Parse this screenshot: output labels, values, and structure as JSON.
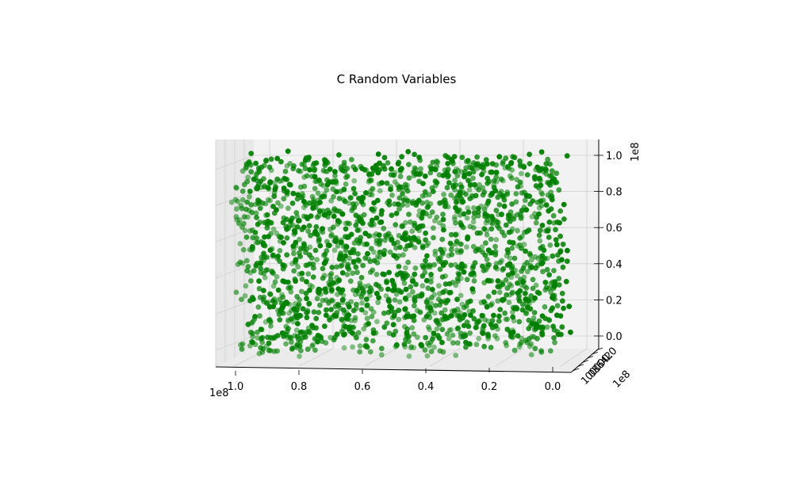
{
  "chart_data": {
    "type": "scatter",
    "projection": "3d",
    "title": "C Random Variables",
    "xlabel": "",
    "ylabel": "",
    "zlabel": "",
    "x_axis": {
      "ticks": [
        0.0,
        0.2,
        0.4,
        0.6,
        0.8,
        1.0
      ],
      "tick_labels": [
        "0.0",
        "0.2",
        "0.4",
        "0.6",
        "0.8",
        "1.0"
      ],
      "offset_label": "1e8",
      "direction": "decreasing left-to-right",
      "range": [
        0,
        100000000
      ]
    },
    "y_axis": {
      "tick_labels": [
        "1.0",
        "0.8",
        "0.6",
        "0.4",
        "0.2",
        "0.0"
      ],
      "offset_label": "1e8",
      "range": [
        0,
        100000000
      ],
      "note": "depth axis seen nearly edge-on; labels overlap"
    },
    "z_axis": {
      "ticks": [
        0.0,
        0.2,
        0.4,
        0.6,
        0.8,
        1.0
      ],
      "tick_labels": [
        "0.0",
        "0.2",
        "0.4",
        "0.6",
        "0.8",
        "1.0"
      ],
      "offset_label": "1e8",
      "range": [
        0,
        100000000
      ]
    },
    "marker_color": "#008000",
    "marker": "circle",
    "approx_point_count": 2000,
    "distribution": "uniform over [0, 1e8] in x, y and z; points cluster in horizontal bands below z ≈ 0.4e8",
    "grid": true,
    "pane_color": "#f2f2f2",
    "grid_color": "#d0d0d0"
  }
}
